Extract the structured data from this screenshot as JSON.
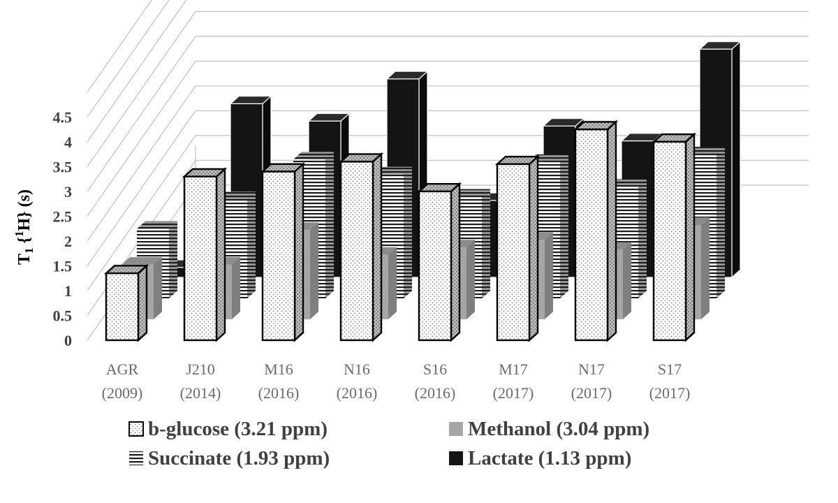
{
  "chart_data": {
    "type": "bar",
    "style": "3d-clustered-column",
    "ylabel_main": "T",
    "ylabel_sub": "1",
    "ylabel_paren_open": " {",
    "ylabel_sup": "1",
    "ylabel_rest": "H} (s)",
    "ylim": [
      0,
      4.5
    ],
    "yticks": [
      "0",
      "0.5",
      "1",
      "1.5",
      "2",
      "2.5",
      "3",
      "3.5",
      "4",
      "4.5"
    ],
    "categories": [
      {
        "name": "AGR",
        "year": "(2009)"
      },
      {
        "name": "J210",
        "year": "(2014)"
      },
      {
        "name": "M16",
        "year": "(2016)"
      },
      {
        "name": "N16",
        "year": "(2016)"
      },
      {
        "name": "S16",
        "year": "(2016)"
      },
      {
        "name": "M17",
        "year": "(2017)"
      },
      {
        "name": "N17",
        "year": "(2017)"
      },
      {
        "name": "S17",
        "year": "(2017)"
      }
    ],
    "series": [
      {
        "name": "b-glucose (3.21 ppm)",
        "pattern": "dots",
        "values": [
          1.35,
          3.3,
          3.4,
          3.6,
          3.0,
          3.55,
          4.25,
          4.0
        ]
      },
      {
        "name": "Methanol (3.04 ppm)",
        "pattern": "gray",
        "values": [
          1.1,
          1.1,
          1.8,
          1.3,
          1.45,
          1.6,
          1.4,
          1.9
        ]
      },
      {
        "name": "Succinate (1.93 ppm)",
        "pattern": "stripes",
        "values": [
          1.4,
          2.0,
          2.8,
          2.5,
          2.05,
          2.75,
          2.25,
          2.9
        ]
      },
      {
        "name": "Lactate (1.13 ppm)",
        "pattern": "black",
        "values": [
          0.2,
          3.5,
          3.15,
          4.0,
          1.55,
          3.05,
          2.75,
          4.6
        ]
      }
    ],
    "legend_position": "bottom",
    "grid": true,
    "colors": {
      "gray": "#a6a6a6",
      "black": "#141414",
      "dots": "#ffffff",
      "stripes": "#ffffff"
    }
  }
}
